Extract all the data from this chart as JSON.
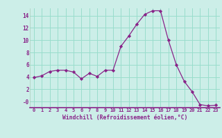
{
  "x": [
    0,
    1,
    2,
    3,
    4,
    5,
    6,
    7,
    8,
    9,
    10,
    11,
    12,
    13,
    14,
    15,
    16,
    17,
    18,
    19,
    20,
    21,
    22,
    23
  ],
  "y": [
    3.9,
    4.2,
    4.9,
    5.1,
    5.1,
    4.8,
    3.7,
    4.6,
    4.1,
    5.1,
    5.1,
    9.0,
    10.7,
    12.6,
    14.2,
    14.8,
    14.8,
    10.0,
    6.0,
    3.3,
    1.6,
    -0.5,
    -0.7,
    -0.6
  ],
  "line_color": "#882288",
  "marker": "D",
  "marker_size": 2.2,
  "bg_color": "#cceee8",
  "grid_color": "#99ddcc",
  "xlabel": "Windchill (Refroidissement éolien,°C)",
  "xlabel_color": "#882288",
  "tick_color": "#882288",
  "ylim": [
    -1.0,
    15.2
  ],
  "xlim": [
    -0.5,
    23.5
  ],
  "ytick_vals": [
    0,
    2,
    4,
    6,
    8,
    10,
    12,
    14
  ],
  "ytick_labels": [
    "-0",
    "2",
    "4",
    "6",
    "8",
    "10",
    "12",
    "14"
  ],
  "xticks": [
    0,
    1,
    2,
    3,
    4,
    5,
    6,
    7,
    8,
    9,
    10,
    11,
    12,
    13,
    14,
    15,
    16,
    17,
    18,
    19,
    20,
    21,
    22,
    23
  ],
  "separator_color": "#882288",
  "spine_color": "#aaccbb"
}
